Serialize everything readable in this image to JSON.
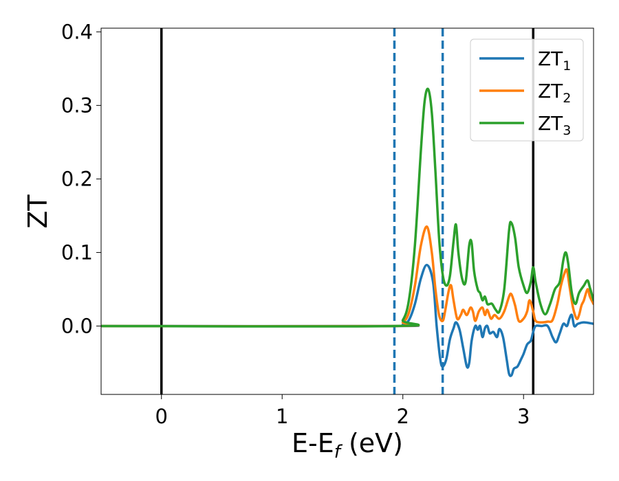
{
  "chart_data": {
    "type": "line",
    "xlabel_main": "E-E",
    "xlabel_sub": "f",
    "xlabel_tail": " (eV)",
    "ylabel": "ZT",
    "xlim": [
      -0.5,
      3.58
    ],
    "ylim": [
      -0.093,
      0.405
    ],
    "x_ticks": [
      0,
      1,
      2,
      3
    ],
    "x_tick_labels": [
      "0",
      "1",
      "2",
      "3"
    ],
    "y_ticks": [
      0.0,
      0.1,
      0.2,
      0.3,
      0.4
    ],
    "y_tick_labels": [
      "0.0",
      "0.1",
      "0.2",
      "0.3",
      "0.4"
    ],
    "grid": false,
    "legend_position": "top-right",
    "vlines": [
      {
        "x": 0.0,
        "style": "solid",
        "color": "#000000"
      },
      {
        "x": 3.08,
        "style": "solid",
        "color": "#000000"
      },
      {
        "x": 1.93,
        "style": "dashed",
        "color": "#1f77b4"
      },
      {
        "x": 2.33,
        "style": "dashed",
        "color": "#1f77b4"
      }
    ],
    "series": [
      {
        "name": "ZT",
        "sub": "1",
        "color": "#1f77b4",
        "points": [
          [
            -0.5,
            0.0
          ],
          [
            1.93,
            0.0
          ],
          [
            2.0,
            0.002
          ],
          [
            2.05,
            0.008
          ],
          [
            2.1,
            0.03
          ],
          [
            2.15,
            0.065
          ],
          [
            2.2,
            0.083
          ],
          [
            2.25,
            0.06
          ],
          [
            2.28,
            0.0
          ],
          [
            2.31,
            -0.045
          ],
          [
            2.33,
            -0.055
          ],
          [
            2.36,
            -0.045
          ],
          [
            2.39,
            -0.018
          ],
          [
            2.42,
            -0.003
          ],
          [
            2.44,
            0.005
          ],
          [
            2.47,
            -0.005
          ],
          [
            2.5,
            -0.03
          ],
          [
            2.53,
            -0.055
          ],
          [
            2.55,
            -0.05
          ],
          [
            2.57,
            -0.02
          ],
          [
            2.6,
            0.0
          ],
          [
            2.62,
            -0.005
          ],
          [
            2.64,
            0.0
          ],
          [
            2.66,
            -0.015
          ],
          [
            2.68,
            -0.003
          ],
          [
            2.7,
            0.0
          ],
          [
            2.72,
            -0.01
          ],
          [
            2.75,
            -0.008
          ],
          [
            2.78,
            -0.015
          ],
          [
            2.8,
            -0.004
          ],
          [
            2.83,
            -0.015
          ],
          [
            2.86,
            -0.045
          ],
          [
            2.88,
            -0.065
          ],
          [
            2.9,
            -0.067
          ],
          [
            2.92,
            -0.058
          ],
          [
            2.95,
            -0.055
          ],
          [
            2.98,
            -0.045
          ],
          [
            3.0,
            -0.038
          ],
          [
            3.03,
            -0.025
          ],
          [
            3.06,
            -0.02
          ],
          [
            3.08,
            -0.008
          ],
          [
            3.1,
            0.0
          ],
          [
            3.15,
            0.0
          ],
          [
            3.2,
            0.0
          ],
          [
            3.24,
            -0.015
          ],
          [
            3.27,
            -0.022
          ],
          [
            3.3,
            -0.01
          ],
          [
            3.33,
            0.003
          ],
          [
            3.36,
            0.0
          ],
          [
            3.38,
            0.01
          ],
          [
            3.4,
            0.015
          ],
          [
            3.42,
            0.0
          ],
          [
            3.45,
            0.003
          ],
          [
            3.5,
            0.005
          ],
          [
            3.58,
            0.003
          ]
        ]
      },
      {
        "name": "ZT",
        "sub": "2",
        "color": "#ff7f0e",
        "points": [
          [
            -0.5,
            0.0
          ],
          [
            1.93,
            0.0
          ],
          [
            2.0,
            0.005
          ],
          [
            2.05,
            0.018
          ],
          [
            2.1,
            0.055
          ],
          [
            2.15,
            0.11
          ],
          [
            2.2,
            0.135
          ],
          [
            2.24,
            0.1
          ],
          [
            2.27,
            0.05
          ],
          [
            2.3,
            0.015
          ],
          [
            2.33,
            0.007
          ],
          [
            2.35,
            0.02
          ],
          [
            2.38,
            0.048
          ],
          [
            2.4,
            0.055
          ],
          [
            2.42,
            0.035
          ],
          [
            2.45,
            0.01
          ],
          [
            2.48,
            0.015
          ],
          [
            2.5,
            0.022
          ],
          [
            2.53,
            0.015
          ],
          [
            2.56,
            0.025
          ],
          [
            2.58,
            0.02
          ],
          [
            2.6,
            0.007
          ],
          [
            2.63,
            0.02
          ],
          [
            2.66,
            0.025
          ],
          [
            2.68,
            0.015
          ],
          [
            2.7,
            0.022
          ],
          [
            2.73,
            0.01
          ],
          [
            2.76,
            0.015
          ],
          [
            2.8,
            0.01
          ],
          [
            2.84,
            0.02
          ],
          [
            2.88,
            0.04
          ],
          [
            2.9,
            0.043
          ],
          [
            2.93,
            0.028
          ],
          [
            2.96,
            0.007
          ],
          [
            3.0,
            0.01
          ],
          [
            3.03,
            0.02
          ],
          [
            3.05,
            0.035
          ],
          [
            3.08,
            0.02
          ],
          [
            3.1,
            0.007
          ],
          [
            3.15,
            0.005
          ],
          [
            3.2,
            0.006
          ],
          [
            3.24,
            0.008
          ],
          [
            3.28,
            0.03
          ],
          [
            3.31,
            0.055
          ],
          [
            3.34,
            0.072
          ],
          [
            3.36,
            0.076
          ],
          [
            3.38,
            0.055
          ],
          [
            3.41,
            0.025
          ],
          [
            3.44,
            0.01
          ],
          [
            3.46,
            0.015
          ],
          [
            3.48,
            0.028
          ],
          [
            3.5,
            0.035
          ],
          [
            3.53,
            0.05
          ],
          [
            3.55,
            0.04
          ],
          [
            3.58,
            0.03
          ]
        ]
      },
      {
        "name": "ZT",
        "sub": "3",
        "color": "#2ca02c",
        "points": [
          [
            -0.5,
            0.0
          ],
          [
            1.93,
            0.0
          ],
          [
            2.0,
            0.008
          ],
          [
            2.05,
            0.035
          ],
          [
            2.1,
            0.11
          ],
          [
            2.15,
            0.24
          ],
          [
            2.18,
            0.305
          ],
          [
            2.21,
            0.322
          ],
          [
            2.24,
            0.29
          ],
          [
            2.27,
            0.21
          ],
          [
            2.3,
            0.12
          ],
          [
            2.33,
            0.07
          ],
          [
            2.36,
            0.055
          ],
          [
            2.39,
            0.068
          ],
          [
            2.42,
            0.115
          ],
          [
            2.44,
            0.138
          ],
          [
            2.46,
            0.1
          ],
          [
            2.49,
            0.065
          ],
          [
            2.52,
            0.06
          ],
          [
            2.55,
            0.11
          ],
          [
            2.57,
            0.113
          ],
          [
            2.59,
            0.075
          ],
          [
            2.62,
            0.05
          ],
          [
            2.64,
            0.045
          ],
          [
            2.66,
            0.035
          ],
          [
            2.68,
            0.04
          ],
          [
            2.7,
            0.03
          ],
          [
            2.72,
            0.03
          ],
          [
            2.74,
            0.03
          ],
          [
            2.77,
            0.022
          ],
          [
            2.8,
            0.02
          ],
          [
            2.84,
            0.05
          ],
          [
            2.88,
            0.13
          ],
          [
            2.9,
            0.14
          ],
          [
            2.93,
            0.12
          ],
          [
            2.96,
            0.08
          ],
          [
            3.0,
            0.055
          ],
          [
            3.03,
            0.045
          ],
          [
            3.06,
            0.06
          ],
          [
            3.08,
            0.08
          ],
          [
            3.1,
            0.06
          ],
          [
            3.14,
            0.03
          ],
          [
            3.18,
            0.016
          ],
          [
            3.22,
            0.03
          ],
          [
            3.26,
            0.05
          ],
          [
            3.3,
            0.06
          ],
          [
            3.33,
            0.09
          ],
          [
            3.35,
            0.1
          ],
          [
            3.37,
            0.085
          ],
          [
            3.4,
            0.045
          ],
          [
            3.43,
            0.03
          ],
          [
            3.46,
            0.045
          ],
          [
            3.5,
            0.055
          ],
          [
            3.53,
            0.062
          ],
          [
            3.55,
            0.052
          ],
          [
            3.58,
            0.035
          ]
        ]
      }
    ]
  }
}
